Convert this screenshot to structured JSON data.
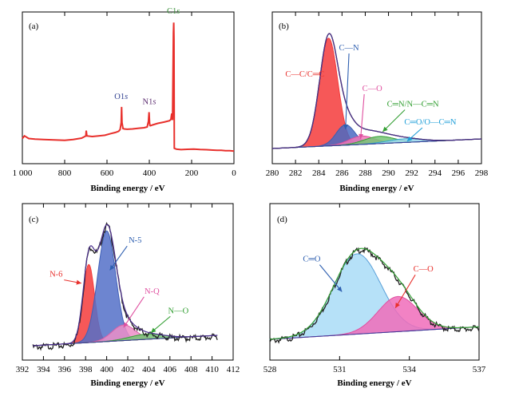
{
  "chart_data": [
    {
      "type": "line",
      "panel": "(a)",
      "xlabel": "Binding energy / eV",
      "ylabel": "",
      "xlim": [
        1000,
        0
      ],
      "x_reversed": true,
      "x_ticks": [
        1000,
        800,
        600,
        400,
        200,
        0
      ],
      "x_tick_labels": [
        "1 000",
        "800",
        "600",
        "400",
        "200",
        "0"
      ],
      "ylim": [
        0,
        100
      ],
      "series": [
        {
          "color": "#e8302c",
          "x": [
            1000,
            990,
            970,
            940,
            900,
            850,
            800,
            760,
            720,
            700,
            698,
            695,
            670,
            640,
            610,
            580,
            560,
            545,
            538,
            533,
            531,
            529,
            524,
            518,
            505,
            480,
            450,
            425,
            410,
            404,
            401,
            399,
            397,
            394,
            385,
            360,
            330,
            305,
            298,
            294,
            290,
            286,
            284.5,
            283.5,
            282,
            278,
            270,
            250,
            220,
            190,
            160,
            130,
            100,
            80,
            60,
            40,
            20,
            10,
            0
          ],
          "y": [
            10,
            12,
            10,
            9.5,
            9.2,
            9.0,
            8.6,
            9.3,
            10.3,
            12,
            16,
            12,
            11.5,
            12,
            12.5,
            13.8,
            14.6,
            15.5,
            16.8,
            22,
            34,
            22,
            17.5,
            17.3,
            17,
            17.3,
            17.8,
            18.2,
            18.8,
            23,
            30,
            22,
            19.8,
            19.7,
            20.3,
            21.5,
            22.5,
            23.5,
            24.5,
            29,
            24,
            90,
            98,
            85,
            2.6,
            2.3,
            1.9,
            1.6,
            1.8,
            2.0,
            1.7,
            1.5,
            1.2,
            1.0,
            1.1,
            0.8,
            0.8,
            0.6,
            0.4
          ]
        }
      ],
      "annotations": [
        {
          "label": "O1",
          "suffix": "s",
          "color": "#2f3f8f",
          "x": 533,
          "y": 40
        },
        {
          "label": "N1",
          "suffix": "s",
          "color": "#5a2a6e",
          "x": 400,
          "y": 36
        },
        {
          "label": "C1",
          "suffix": "s",
          "color": "#3a8f3a",
          "x": 286,
          "y": 105
        }
      ]
    },
    {
      "type": "area",
      "panel": "(b)",
      "xlabel": "Binding energy / eV",
      "ylabel": "",
      "xlim": [
        280,
        298
      ],
      "x_ticks": [
        280,
        282,
        284,
        286,
        288,
        290,
        292,
        294,
        296,
        298
      ],
      "ylim": [
        0,
        110
      ],
      "series": [
        {
          "name": "C—C/C═C",
          "shape": "peak",
          "color": "#f43b3b",
          "fill": "#f43b3b",
          "center": 284.85,
          "height": 90,
          "width": 0.78
        },
        {
          "name": "C—N",
          "shape": "peak",
          "color": "#3a5fb0",
          "fill": "#4a6ac2",
          "center": 286.3,
          "height": 17,
          "width": 0.8
        },
        {
          "name": "C—O",
          "shape": "peak",
          "color": "#e050a0",
          "fill": "#ee78b8",
          "center": 287.7,
          "height": 7,
          "width": 1.1
        },
        {
          "name": "C═N/N—C═N",
          "shape": "peak",
          "color": "#35a035",
          "fill": "#76c476",
          "center": 289.2,
          "height": 6,
          "width": 1.3
        },
        {
          "name": "C═O/O—C═N",
          "shape": "peak",
          "color": "#30a8cc",
          "fill": "#9fd8ef",
          "center": 291.4,
          "height": 3,
          "width": 1.5
        },
        {
          "name": "",
          "shape": "envelope",
          "color": "#4b2f8c",
          "fill": "none"
        }
      ],
      "baseline": [
        [
          280,
          2
        ],
        [
          298,
          10
        ]
      ],
      "annotations": [
        {
          "label": "C—C/C═C",
          "color": "#e8302c",
          "x": 282.8,
          "y": 62,
          "arrow_to": null
        },
        {
          "label": "C—N",
          "color": "#2e5fb0",
          "x": 286.6,
          "y": 84,
          "arrow_to": [
            286.3,
            18
          ]
        },
        {
          "label": "C—O",
          "color": "#e050a0",
          "x": 288.6,
          "y": 50,
          "arrow_to": [
            287.6,
            10
          ]
        },
        {
          "label": "C═N/N—C═N",
          "color": "#35a035",
          "x": 292.1,
          "y": 37,
          "arrow_to": [
            289.5,
            16
          ]
        },
        {
          "label": "C═O/O—C═N",
          "color": "#1f9fd8",
          "x": 293.6,
          "y": 22,
          "arrow_to": [
            291.6,
            8
          ]
        }
      ]
    },
    {
      "type": "area",
      "panel": "(c)",
      "xlabel": "Binding energy / eV",
      "ylabel": "",
      "xlim": [
        392,
        412
      ],
      "x_ticks": [
        392,
        394,
        396,
        398,
        400,
        402,
        404,
        406,
        408,
        410,
        412
      ],
      "ylim": [
        0,
        100
      ],
      "series": [
        {
          "name": "N-6",
          "shape": "peak",
          "color": "#f43b3b",
          "fill": "#f43b3b",
          "center": 398.3,
          "height": 60,
          "width": 0.55
        },
        {
          "name": "N-5",
          "shape": "peak",
          "color": "#4060b8",
          "fill": "#5470c8",
          "center": 400.0,
          "height": 85,
          "width": 0.85
        },
        {
          "name": "N-Q",
          "shape": "peak",
          "color": "#d860a8",
          "fill": "#ec8ec8",
          "center": 401.6,
          "height": 12,
          "width": 1.1
        },
        {
          "name": "N—O",
          "shape": "peak",
          "color": "#35a035",
          "fill": "#76c476",
          "center": 403.8,
          "height": 4,
          "width": 1.6
        },
        {
          "name": "",
          "shape": "envelope",
          "color": "#4b2f8c",
          "fill": "none"
        }
      ],
      "baseline": [
        [
          393,
          0
        ],
        [
          410.5,
          8
        ]
      ],
      "annotations": [
        {
          "label": "N-6",
          "color": "#e8302c",
          "x": 395.2,
          "y": 53,
          "arrow_to": [
            397.6,
            48
          ]
        },
        {
          "label": "N-5",
          "color": "#2e5fb0",
          "x": 402.7,
          "y": 79,
          "arrow_to": [
            400.3,
            58
          ]
        },
        {
          "label": "N-Q",
          "color": "#e050a0",
          "x": 404.3,
          "y": 40,
          "arrow_to": [
            401.6,
            14
          ]
        },
        {
          "label": "N—O",
          "color": "#35a035",
          "x": 406.8,
          "y": 25,
          "arrow_to": [
            404.2,
            10
          ]
        }
      ]
    },
    {
      "type": "area",
      "panel": "(d)",
      "xlabel": "Binding energy / eV",
      "ylabel": "",
      "xlim": [
        528,
        537
      ],
      "x_ticks": [
        528,
        531,
        534,
        537
      ],
      "ylim": [
        0,
        100
      ],
      "series": [
        {
          "name": "C═O",
          "shape": "peak",
          "color": "#5aa0d8",
          "fill": "#a9dcf7",
          "center": 531.75,
          "height": 64,
          "width": 1.02
        },
        {
          "name": "C—O",
          "shape": "peak",
          "color": "#e050a0",
          "fill": "#f06cba",
          "center": 533.5,
          "height": 28,
          "width": 0.85
        },
        {
          "name": "",
          "shape": "envelope",
          "color": "#35a035",
          "fill": "none"
        }
      ],
      "baseline": [
        [
          528,
          0
        ],
        [
          537,
          10
        ]
      ],
      "annotations": [
        {
          "label": "C═O",
          "color": "#2e5fb0",
          "x": 529.8,
          "y": 62,
          "arrow_to": [
            531.1,
            38
          ]
        },
        {
          "label": "C—O",
          "color": "#e8302c",
          "x": 534.6,
          "y": 54,
          "arrow_to": [
            533.4,
            25
          ]
        }
      ]
    }
  ]
}
